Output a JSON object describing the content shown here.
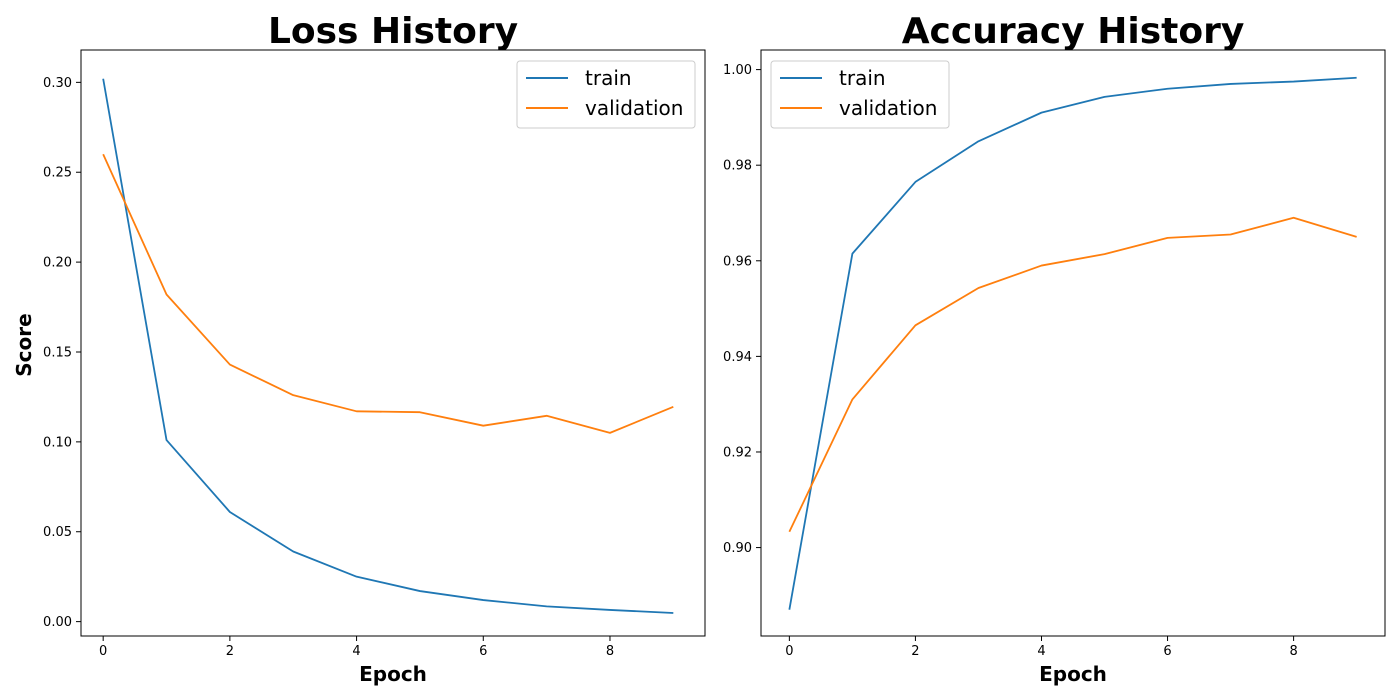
{
  "chart_data": [
    {
      "type": "line",
      "title": "Loss History",
      "xlabel": "Epoch",
      "ylabel": "Score",
      "x": [
        0,
        1,
        2,
        3,
        4,
        5,
        6,
        7,
        8,
        9
      ],
      "xlim": [
        -0.35,
        9.5
      ],
      "ylim": [
        -0.008,
        0.318
      ],
      "xticks": [
        0,
        2,
        4,
        6,
        8
      ],
      "yticks": [
        0.0,
        0.05,
        0.1,
        0.15,
        0.2,
        0.25,
        0.3
      ],
      "ytick_decimals": 2,
      "grid": false,
      "legend_position": "top-right",
      "series": [
        {
          "name": "train",
          "color": "#1f77b4",
          "values": [
            0.302,
            0.101,
            0.061,
            0.039,
            0.025,
            0.017,
            0.012,
            0.0085,
            0.0065,
            0.0048
          ]
        },
        {
          "name": "validation",
          "color": "#ff7f0e",
          "values": [
            0.26,
            0.182,
            0.143,
            0.126,
            0.117,
            0.1165,
            0.109,
            0.1145,
            0.105,
            0.1195
          ]
        }
      ]
    },
    {
      "type": "line",
      "title": "Accuracy History",
      "xlabel": "Epoch",
      "ylabel": "",
      "x": [
        0,
        1,
        2,
        3,
        4,
        5,
        6,
        7,
        8,
        9
      ],
      "xlim": [
        -0.45,
        9.45
      ],
      "ylim": [
        0.8815,
        1.0041
      ],
      "xticks": [
        0,
        2,
        4,
        6,
        8
      ],
      "yticks": [
        0.9,
        0.92,
        0.94,
        0.96,
        0.98,
        1.0
      ],
      "ytick_decimals": 2,
      "grid": false,
      "legend_position": "top-left",
      "series": [
        {
          "name": "train",
          "color": "#1f77b4",
          "values": [
            0.887,
            0.9615,
            0.9765,
            0.985,
            0.991,
            0.9943,
            0.996,
            0.997,
            0.9975,
            0.9983
          ]
        },
        {
          "name": "validation",
          "color": "#ff7f0e",
          "values": [
            0.9033,
            0.931,
            0.9465,
            0.9543,
            0.959,
            0.9614,
            0.9648,
            0.9655,
            0.969,
            0.965
          ]
        }
      ]
    }
  ]
}
